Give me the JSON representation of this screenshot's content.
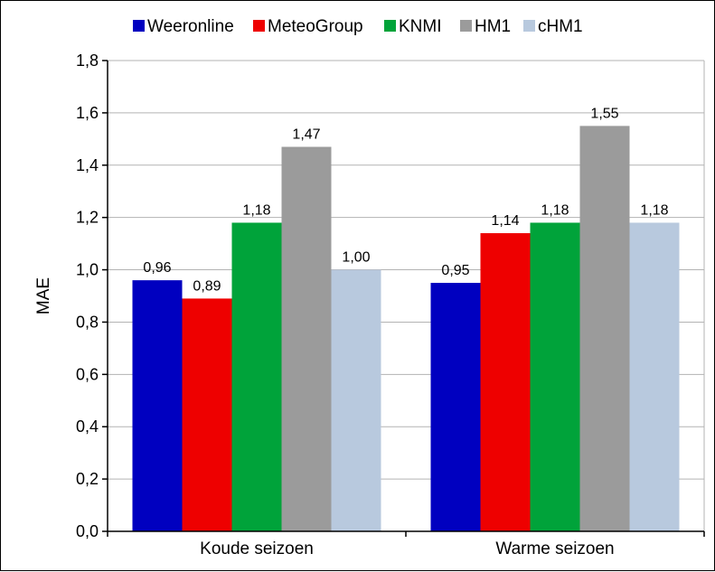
{
  "chart_data": {
    "type": "bar",
    "title": "",
    "xlabel": "",
    "ylabel": "MAE",
    "ylim": [
      0,
      1.8
    ],
    "yticks": [
      "0,0",
      "0,2",
      "0,4",
      "0,6",
      "0,8",
      "1,0",
      "1,2",
      "1,4",
      "1,6",
      "1,8"
    ],
    "ytick_values": [
      0,
      0.2,
      0.4,
      0.6,
      0.8,
      1.0,
      1.2,
      1.4,
      1.6,
      1.8
    ],
    "grid": true,
    "legend_position": "top",
    "categories": [
      "Koude seizoen",
      "Warme seizoen"
    ],
    "series": [
      {
        "name": "Weeronline",
        "color": "#0000c0",
        "values": [
          0.96,
          0.95
        ],
        "labels": [
          "0,96",
          "0,95"
        ]
      },
      {
        "name": "MeteoGroup",
        "color": "#ee0000",
        "values": [
          0.89,
          1.14
        ],
        "labels": [
          "0,89",
          "1,14"
        ]
      },
      {
        "name": "KNMI",
        "color": "#00a33a",
        "values": [
          1.18,
          1.18
        ],
        "labels": [
          "1,18",
          "1,18"
        ]
      },
      {
        "name": "HM1",
        "color": "#9b9b9b",
        "values": [
          1.47,
          1.55
        ],
        "labels": [
          "1,47",
          "1,55"
        ]
      },
      {
        "name": "cHM1",
        "color": "#b8c9de",
        "values": [
          1.0,
          1.18
        ],
        "labels": [
          "1,00",
          "1,18"
        ]
      }
    ]
  }
}
